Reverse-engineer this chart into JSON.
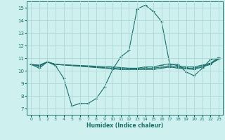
{
  "xlabel": "Humidex (Indice chaleur)",
  "background_color": "#cef0ee",
  "grid_color": "#aed8d5",
  "line_color": "#1a6e6a",
  "xlim": [
    -0.5,
    23.5
  ],
  "ylim": [
    6.5,
    15.5
  ],
  "yticks": [
    7,
    8,
    9,
    10,
    11,
    12,
    13,
    14,
    15
  ],
  "xticks": [
    0,
    1,
    2,
    3,
    4,
    5,
    6,
    7,
    8,
    9,
    10,
    11,
    12,
    13,
    14,
    15,
    16,
    17,
    18,
    19,
    20,
    21,
    22,
    23
  ],
  "lines": [
    {
      "x": [
        0,
        1,
        2,
        3,
        4,
        5,
        6,
        7,
        8,
        9,
        10,
        11,
        12,
        13,
        14,
        15,
        16,
        17,
        18,
        19,
        20,
        21,
        22,
        23
      ],
      "y": [
        10.5,
        10.2,
        10.7,
        10.4,
        9.4,
        7.2,
        7.4,
        7.4,
        7.8,
        8.7,
        10.1,
        11.1,
        11.6,
        14.9,
        15.2,
        14.7,
        13.9,
        10.5,
        10.5,
        9.9,
        9.6,
        10.2,
        10.9,
        11.0
      ]
    },
    {
      "x": [
        0,
        1,
        2,
        3,
        10,
        11,
        12,
        13,
        14,
        15,
        16,
        17,
        18,
        19,
        20,
        21,
        22,
        23
      ],
      "y": [
        10.5,
        10.4,
        10.7,
        10.5,
        10.15,
        10.1,
        10.1,
        10.1,
        10.1,
        10.1,
        10.2,
        10.3,
        10.2,
        10.15,
        10.1,
        10.3,
        10.5,
        11.0
      ]
    },
    {
      "x": [
        0,
        1,
        2,
        3,
        10,
        11,
        12,
        13,
        14,
        15,
        16,
        17,
        18,
        19,
        20,
        21,
        22,
        23
      ],
      "y": [
        10.5,
        10.35,
        10.7,
        10.5,
        10.2,
        10.15,
        10.15,
        10.15,
        10.2,
        10.2,
        10.3,
        10.4,
        10.3,
        10.2,
        10.2,
        10.35,
        10.55,
        10.9
      ]
    },
    {
      "x": [
        0,
        1,
        2,
        3,
        10,
        11,
        12,
        13,
        14,
        15,
        16,
        17,
        18,
        19,
        20,
        21,
        22,
        23
      ],
      "y": [
        10.5,
        10.45,
        10.7,
        10.5,
        10.3,
        10.25,
        10.2,
        10.2,
        10.3,
        10.3,
        10.45,
        10.55,
        10.4,
        10.3,
        10.3,
        10.45,
        10.6,
        11.05
      ]
    }
  ]
}
